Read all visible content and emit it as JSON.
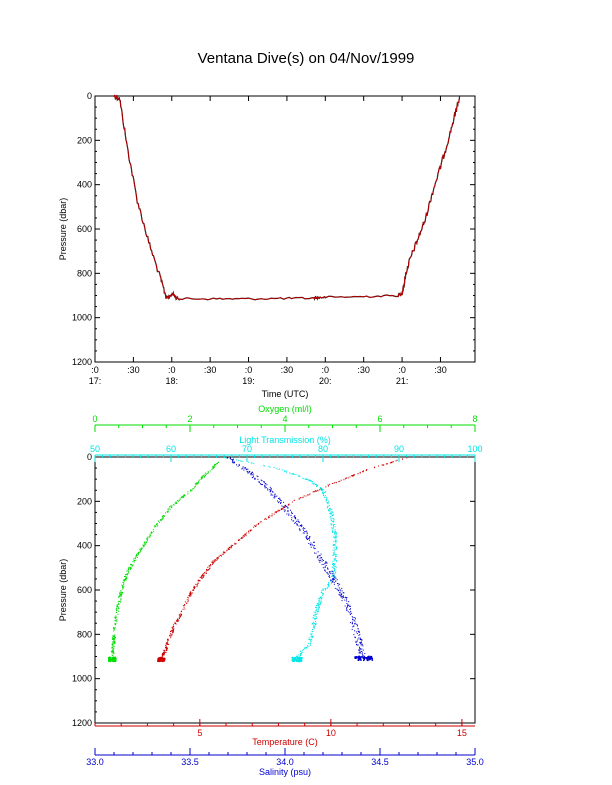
{
  "page": {
    "title": "Ventana Dive(s) on 04/Nov/1999"
  },
  "chart_data": [
    {
      "type": "line",
      "name": "time-pressure",
      "xlabel": "Time (UTC)",
      "ylabel": "Pressure (dbar)",
      "xlim": [
        17.0,
        21.95
      ],
      "ylim": [
        1200,
        0
      ],
      "y_inverted": true,
      "yticks": [
        0,
        200,
        400,
        600,
        800,
        1000,
        1200
      ],
      "xticks": [
        {
          "value": 17.0,
          "top": ":0",
          "bottom": "17:"
        },
        {
          "value": 17.5,
          "top": ":30",
          "bottom": ""
        },
        {
          "value": 18.0,
          "top": ":0",
          "bottom": "18:"
        },
        {
          "value": 18.5,
          "top": ":30",
          "bottom": ""
        },
        {
          "value": 19.0,
          "top": ":0",
          "bottom": "19:"
        },
        {
          "value": 19.5,
          "top": ":30",
          "bottom": ""
        },
        {
          "value": 20.0,
          "top": ":0",
          "bottom": "20:"
        },
        {
          "value": 20.5,
          "top": ":30",
          "bottom": ""
        },
        {
          "value": 21.0,
          "top": ":0",
          "bottom": "21:"
        },
        {
          "value": 21.5,
          "top": ":30",
          "bottom": ""
        }
      ],
      "series": [
        {
          "color": "#cc0000",
          "x": [
            17.25,
            17.32,
            17.42,
            17.55,
            17.7,
            17.85,
            17.93,
            17.97,
            18.02,
            18.05,
            18.1,
            18.5,
            19.0,
            19.5,
            19.85,
            19.9,
            20.0,
            20.5,
            20.95,
            21.0,
            21.02,
            21.05,
            21.1,
            21.2,
            21.3,
            21.4,
            21.5,
            21.6,
            21.7,
            21.75
          ],
          "y": [
            0,
            10,
            230,
            470,
            660,
            820,
            910,
            905,
            890,
            910,
            915,
            915,
            915,
            913,
            912,
            910,
            908,
            905,
            900,
            890,
            860,
            800,
            740,
            650,
            560,
            430,
            320,
            200,
            70,
            0
          ]
        }
      ]
    },
    {
      "type": "scatter",
      "name": "profiles",
      "ylabel": "Pressure (dbar)",
      "ylim": [
        1200,
        0
      ],
      "y_inverted": true,
      "yticks": [
        0,
        200,
        400,
        600,
        800,
        1000,
        1200
      ],
      "axes": {
        "oxygen": {
          "label": "Oxygen (ml/l)",
          "color": "#00dd00",
          "range": [
            0,
            8
          ],
          "ticks": [
            0,
            2,
            4,
            6,
            8
          ]
        },
        "transmission": {
          "label": "Light Transmission (%)",
          "color": "#00e5e5",
          "range": [
            50,
            100
          ],
          "ticks": [
            50,
            60,
            70,
            80,
            90,
            100
          ]
        },
        "temperature": {
          "label": "Temperature (C)",
          "color": "#cc0000",
          "range": [
            1,
            15.5
          ],
          "ticks": [
            5,
            10,
            15
          ]
        },
        "salinity": {
          "label": "Salinity (psu)",
          "color": "#0000cc",
          "range": [
            33.0,
            35.0
          ],
          "ticks": [
            "33.0",
            "33.5",
            "34.0",
            "34.5",
            "35.0"
          ]
        }
      },
      "series": [
        {
          "axis": "oxygen",
          "color": "#00dd00",
          "x": [
            2.6,
            2.3,
            2.0,
            1.6,
            1.3,
            1.0,
            0.8,
            0.65,
            0.55,
            0.5,
            0.45,
            0.4,
            0.38,
            0.36,
            0.35
          ],
          "y": [
            20,
            80,
            150,
            220,
            300,
            400,
            470,
            530,
            600,
            650,
            700,
            780,
            840,
            880,
            910
          ]
        },
        {
          "axis": "transmission",
          "color": "#00e5e5",
          "x": [
            67,
            74,
            78,
            80,
            81,
            81.5,
            81.5,
            81.3,
            80,
            79,
            78.5,
            78,
            77,
            76.5
          ],
          "y": [
            0,
            50,
            100,
            150,
            250,
            350,
            450,
            550,
            600,
            700,
            800,
            850,
            880,
            910
          ]
        },
        {
          "axis": "temperature",
          "color": "#cc0000",
          "x": [
            12.9,
            11.5,
            10.0,
            8.5,
            7.2,
            6.2,
            5.5,
            5.0,
            4.6,
            4.3,
            4.0,
            3.8,
            3.7,
            3.6,
            3.5
          ],
          "y": [
            0,
            50,
            120,
            200,
            300,
            400,
            470,
            550,
            620,
            700,
            760,
            820,
            860,
            890,
            910
          ]
        },
        {
          "axis": "salinity",
          "color": "#0000cc",
          "x": [
            33.7,
            33.8,
            33.9,
            33.97,
            34.05,
            34.12,
            34.18,
            34.24,
            34.3,
            34.34,
            34.37,
            34.39,
            34.4,
            34.41
          ],
          "y": [
            0,
            60,
            130,
            200,
            280,
            360,
            450,
            530,
            620,
            700,
            780,
            840,
            880,
            905
          ]
        }
      ]
    }
  ]
}
